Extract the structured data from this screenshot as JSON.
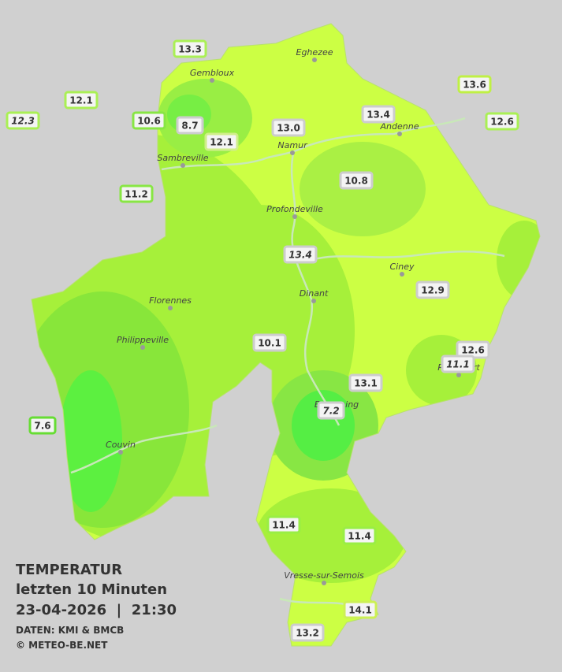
{
  "legend": {
    "title": "TEMPERATUR",
    "subtitle": "letzten 10 Minuten",
    "datetime": "23-04-2026  |  21:30",
    "source": "DATEN: KMI & BMCB",
    "copyright": "© METEO-BE.NET"
  },
  "cities": [
    {
      "name": "Eghezee"
    },
    {
      "name": "Gembloux"
    },
    {
      "name": "Andenne"
    },
    {
      "name": "Namur"
    },
    {
      "name": "Sambreville"
    },
    {
      "name": "Profondeville"
    },
    {
      "name": "Ciney"
    },
    {
      "name": "Dinant"
    },
    {
      "name": "Florennes"
    },
    {
      "name": "Philippeville"
    },
    {
      "name": "Rochefort"
    },
    {
      "name": "Beauraing"
    },
    {
      "name": "Couvin"
    },
    {
      "name": "Vresse-sur-Semois"
    }
  ],
  "stations": [
    {
      "temp": "13.3",
      "border": "#aaf055"
    },
    {
      "temp": "12.1",
      "border": "#aaf055"
    },
    {
      "temp": "12.3",
      "border": "#aaf055",
      "italic": true
    },
    {
      "temp": "10.6",
      "border": "#88e644"
    },
    {
      "temp": "8.7",
      "border": "#cccccc"
    },
    {
      "temp": "12.1",
      "border": "#cfee88"
    },
    {
      "temp": "13.0",
      "border": "#cccccc"
    },
    {
      "temp": "13.4",
      "border": "#cccccc"
    },
    {
      "temp": "13.6",
      "border": "#bff044"
    },
    {
      "temp": "12.6",
      "border": "#aaf055"
    },
    {
      "temp": "11.2",
      "border": "#88e644"
    },
    {
      "temp": "10.8",
      "border": "#cccccc"
    },
    {
      "temp": "13.4",
      "border": "#cccccc",
      "italic": true
    },
    {
      "temp": "12.9",
      "border": "#cccccc"
    },
    {
      "temp": "10.1",
      "border": "#cccccc"
    },
    {
      "temp": "12.6",
      "border": "#cccccc"
    },
    {
      "temp": "11.1",
      "border": "#cccccc",
      "italic": true
    },
    {
      "temp": "13.1",
      "border": "#cccccc"
    },
    {
      "temp": "7.2",
      "border": "#cccccc",
      "italic": true
    },
    {
      "temp": "7.6",
      "border": "#66dd33"
    },
    {
      "temp": "11.4",
      "border": "#99ee44"
    },
    {
      "temp": "11.4",
      "border": "#99ee44"
    },
    {
      "temp": "14.1",
      "border": "#ccf055"
    },
    {
      "temp": "13.2",
      "border": "#cccccc"
    }
  ]
}
